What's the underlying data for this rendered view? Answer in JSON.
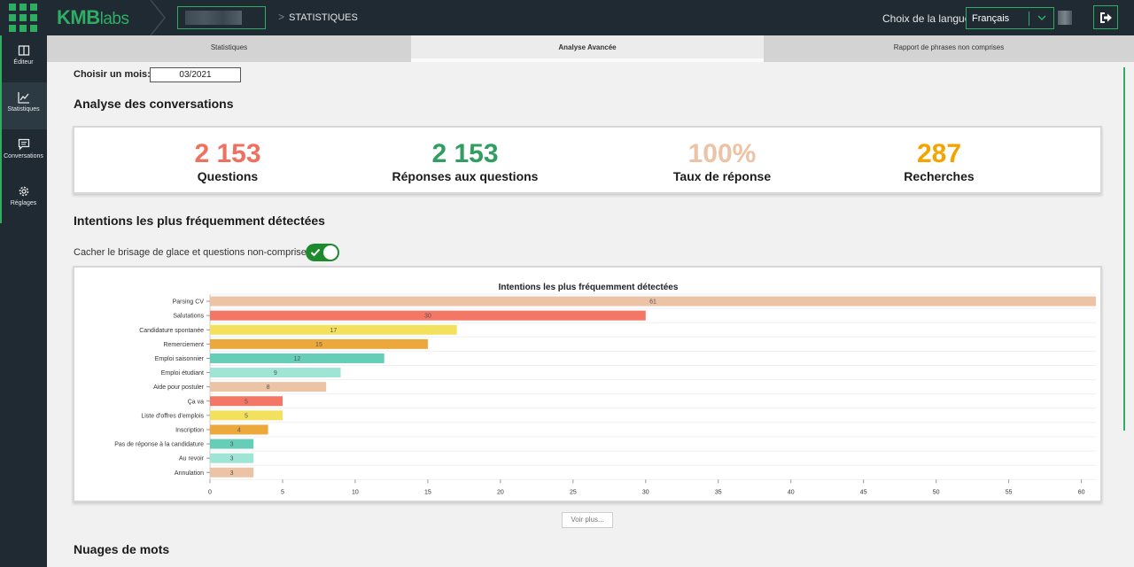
{
  "header": {
    "logo_main": "KMB",
    "logo_suffix": "labs",
    "breadcrumb_sep": ">",
    "breadcrumb": "STATISTIQUES",
    "language_label": "Choix de la langue:",
    "language_value": "Français"
  },
  "sidebar": {
    "items": [
      {
        "label": "Éditeur",
        "icon": "book-icon"
      },
      {
        "label": "Statistiques",
        "icon": "chart-icon"
      },
      {
        "label": "Conversations",
        "icon": "chat-icon"
      },
      {
        "label": "Réglages",
        "icon": "gear-icon"
      }
    ]
  },
  "tabs": [
    {
      "label": "Statistiques"
    },
    {
      "label": "Analyse Avancée"
    },
    {
      "label": "Rapport de phrases non comprises"
    }
  ],
  "month": {
    "label": "Choisir un mois:",
    "value": "03/2021"
  },
  "conversations": {
    "title": "Analyse des conversations",
    "stats": [
      {
        "value": "2 153",
        "label": "Questions",
        "color": "#f07060"
      },
      {
        "value": "2 153",
        "label": "Réponses aux questions",
        "color": "#2f9e60"
      },
      {
        "value": "100%",
        "label": "Taux de réponse",
        "color": "#ecc3a4"
      },
      {
        "value": "287",
        "label": "Recherches",
        "color": "#f5a300"
      }
    ]
  },
  "intents": {
    "title": "Intentions les plus fréquemment détectées",
    "toggle_label": "Cacher le brisage de glace et questions non-comprises",
    "toggle_on": true
  },
  "chart_data": {
    "type": "bar",
    "orientation": "horizontal",
    "title": "Intentions les plus fréquemment détectées",
    "categories": [
      "Parsing CV",
      "Salutations",
      "Candidature spontanée",
      "Remerciement",
      "Emploi saisonnier",
      "Emploi étudiant",
      "Aide pour postuler",
      "Ça va",
      "Liste d'offres d'emplois",
      "Inscription",
      "Pas de réponse à la candidature",
      "Au revoir",
      "Annulation"
    ],
    "values": [
      61,
      30,
      17,
      15,
      12,
      9,
      8,
      5,
      5,
      4,
      3,
      3,
      3
    ],
    "colors": [
      "#ecc3a4",
      "#f47766",
      "#f3e15e",
      "#eda83c",
      "#66cdb6",
      "#9ee5d6",
      "#ecc3a4",
      "#f47766",
      "#f3e15e",
      "#eda83c",
      "#66cdb6",
      "#9ee5d6",
      "#ecc3a4"
    ],
    "xlim": [
      0,
      61
    ],
    "xticks": [
      0,
      5,
      10,
      15,
      20,
      25,
      30,
      35,
      40,
      45,
      50,
      55,
      60
    ],
    "xlabel": "",
    "ylabel": ""
  },
  "more_button": "Voir plus...",
  "wordcloud": {
    "title": "Nuages de mots"
  }
}
